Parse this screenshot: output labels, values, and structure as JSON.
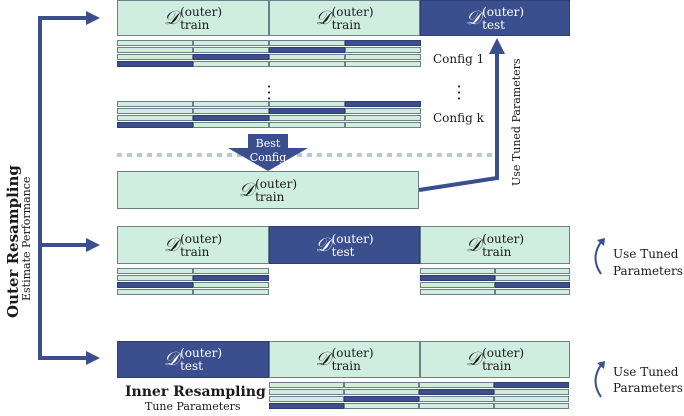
{
  "data_symbol": "𝒟",
  "train_sub": "train",
  "test_sub": "test",
  "outer_sup": "(outer)",
  "config1_label": "Config 1",
  "configk_label": "Config k",
  "best_config_line1": "Best",
  "best_config_line2": "Config",
  "use_tuned_vertical": "Use Tuned Parameters",
  "use_tuned_line1": "Use Tuned",
  "use_tuned_line2": "Parameters",
  "outer_resampling_title": "Outer Resampling",
  "outer_resampling_subtitle": "Estimate Performance",
  "inner_resampling_title": "Inner Resampling",
  "inner_resampling_subtitle": "Tune Parameters",
  "colors": {
    "train_fill": "#cfeee0",
    "test_fill": "#3b4f8f",
    "arrow": "#3b4f8f",
    "dotted_line": "#b9c7d9"
  }
}
